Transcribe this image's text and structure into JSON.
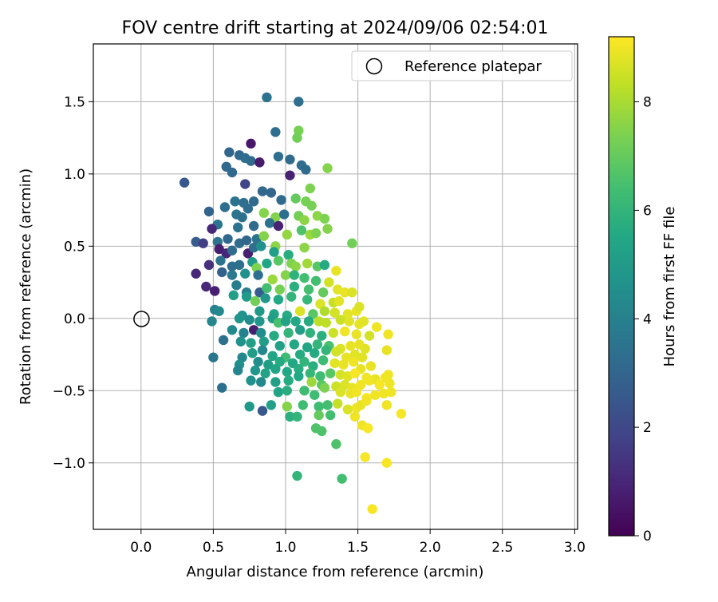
{
  "chart_data": {
    "type": "scatter",
    "title": "FOV centre drift starting at 2024/09/06 02:54:01",
    "xlabel": "Angular distance from reference (arcmin)",
    "ylabel": "Rotation from reference (arcmin)",
    "xlim": [
      -0.33,
      3.02
    ],
    "ylim": [
      -1.46,
      1.9
    ],
    "xticks": [
      0.0,
      0.5,
      1.0,
      1.5,
      2.0,
      2.5,
      3.0
    ],
    "xtick_labels": [
      "0.0",
      "0.5",
      "1.0",
      "1.5",
      "2.0",
      "2.5",
      "3.0"
    ],
    "yticks": [
      -1.0,
      -0.5,
      0.0,
      0.5,
      1.0,
      1.5
    ],
    "ytick_labels": [
      "−1.0",
      "−0.5",
      "0.0",
      "0.5",
      "1.0",
      "1.5"
    ],
    "grid": true,
    "legend": {
      "position": "top-right",
      "label": "Reference platepar"
    },
    "reference_point": {
      "x": 0.0,
      "y": 0.0
    },
    "colorbar": {
      "label": "Hours from first FF file",
      "min": 0,
      "max": 9.2,
      "ticks": [
        0,
        2,
        4,
        6,
        8
      ],
      "tick_labels": [
        "0",
        "2",
        "4",
        "6",
        "8"
      ],
      "colormap": "viridis"
    },
    "points": [
      [
        0.87,
        1.53,
        3.5
      ],
      [
        1.09,
        1.5,
        3.3
      ],
      [
        0.93,
        1.29,
        3.3
      ],
      [
        1.09,
        1.3,
        7.3
      ],
      [
        1.08,
        1.25,
        7.2
      ],
      [
        0.76,
        1.21,
        0.6
      ],
      [
        0.61,
        1.15,
        3.0
      ],
      [
        0.68,
        1.13,
        3.1
      ],
      [
        0.72,
        1.11,
        3.3
      ],
      [
        0.76,
        1.09,
        3.2
      ],
      [
        0.82,
        1.08,
        0.7
      ],
      [
        0.95,
        1.12,
        3.3
      ],
      [
        1.03,
        1.1,
        3.2
      ],
      [
        1.11,
        1.06,
        3.3
      ],
      [
        1.14,
        1.03,
        3.2
      ],
      [
        0.59,
        1.05,
        3.1
      ],
      [
        0.63,
        1.01,
        3.1
      ],
      [
        1.03,
        0.99,
        0.9
      ],
      [
        1.29,
        1.04,
        7.5
      ],
      [
        0.3,
        0.94,
        2.5
      ],
      [
        0.72,
        0.93,
        1.9
      ],
      [
        0.84,
        0.88,
        3.0
      ],
      [
        0.9,
        0.87,
        3.0
      ],
      [
        1.17,
        0.9,
        7.4
      ],
      [
        0.65,
        0.81,
        3.5
      ],
      [
        0.71,
        0.8,
        3.3
      ],
      [
        0.78,
        0.81,
        3.2
      ],
      [
        0.97,
        0.82,
        3.2
      ],
      [
        1.07,
        0.83,
        7.0
      ],
      [
        1.14,
        0.81,
        7.3
      ],
      [
        1.18,
        0.78,
        7.3
      ],
      [
        0.47,
        0.74,
        2.9
      ],
      [
        0.58,
        0.77,
        3.3
      ],
      [
        0.66,
        0.72,
        3.5
      ],
      [
        0.7,
        0.7,
        3.4
      ],
      [
        0.74,
        0.76,
        3.3
      ],
      [
        0.85,
        0.73,
        7.5
      ],
      [
        0.93,
        0.7,
        7.5
      ],
      [
        0.99,
        0.72,
        3.4
      ],
      [
        1.09,
        0.71,
        7.2
      ],
      [
        1.13,
        0.68,
        7.6
      ],
      [
        1.22,
        0.71,
        7.6
      ],
      [
        1.27,
        0.69,
        7.4
      ],
      [
        0.53,
        0.65,
        3.6
      ],
      [
        0.49,
        0.62,
        1.0
      ],
      [
        0.67,
        0.63,
        3.5
      ],
      [
        0.78,
        0.64,
        3.2
      ],
      [
        0.89,
        0.66,
        3.5
      ],
      [
        0.95,
        0.64,
        0.9
      ],
      [
        1.11,
        0.61,
        6.6
      ],
      [
        1.17,
        0.58,
        7.8
      ],
      [
        1.21,
        0.59,
        7.4
      ],
      [
        1.29,
        0.62,
        7.5
      ],
      [
        1.01,
        0.58,
        7.7
      ],
      [
        0.38,
        0.53,
        2.7
      ],
      [
        0.43,
        0.52,
        1.7
      ],
      [
        0.53,
        0.53,
        3.5
      ],
      [
        0.6,
        0.55,
        3.1
      ],
      [
        0.68,
        0.52,
        3.2
      ],
      [
        0.73,
        0.54,
        3.0
      ],
      [
        0.8,
        0.55,
        3.5
      ],
      [
        0.85,
        0.57,
        7.5
      ],
      [
        0.93,
        0.5,
        7.6
      ],
      [
        1.13,
        0.49,
        7.6
      ],
      [
        1.46,
        0.52,
        7.2
      ],
      [
        0.54,
        0.48,
        0.8
      ],
      [
        0.59,
        0.45,
        1.0
      ],
      [
        0.63,
        0.47,
        3.2
      ],
      [
        0.74,
        0.45,
        0.8
      ],
      [
        0.78,
        0.49,
        3.3
      ],
      [
        0.83,
        0.5,
        4.6
      ],
      [
        0.92,
        0.46,
        5.2
      ],
      [
        1.02,
        0.44,
        5.7
      ],
      [
        0.47,
        0.37,
        1.3
      ],
      [
        0.55,
        0.4,
        3.5
      ],
      [
        0.63,
        0.36,
        3.3
      ],
      [
        0.68,
        0.37,
        3.4
      ],
      [
        0.77,
        0.39,
        5.0
      ],
      [
        0.8,
        0.35,
        7.4
      ],
      [
        0.87,
        0.38,
        5.4
      ],
      [
        0.95,
        0.4,
        6.8
      ],
      [
        1.04,
        0.38,
        7.4
      ],
      [
        1.07,
        0.36,
        7.6
      ],
      [
        1.15,
        0.38,
        7.9
      ],
      [
        1.22,
        0.36,
        6.8
      ],
      [
        1.27,
        0.37,
        5.6
      ],
      [
        1.35,
        0.33,
        8.9
      ],
      [
        0.38,
        0.31,
        1.0
      ],
      [
        0.56,
        0.32,
        2.9
      ],
      [
        0.63,
        0.3,
        3.7
      ],
      [
        0.72,
        0.31,
        4.6
      ],
      [
        0.81,
        0.3,
        3.3
      ],
      [
        0.91,
        0.27,
        7.8
      ],
      [
        1.0,
        0.3,
        7.5
      ],
      [
        1.06,
        0.3,
        5.9
      ],
      [
        1.13,
        0.28,
        6.4
      ],
      [
        1.21,
        0.26,
        6.4
      ],
      [
        1.3,
        0.25,
        8.6
      ],
      [
        0.45,
        0.22,
        1.0
      ],
      [
        0.51,
        0.19,
        0.8
      ],
      [
        0.66,
        0.23,
        3.9
      ],
      [
        0.73,
        0.18,
        3.9
      ],
      [
        0.82,
        0.18,
        2.7
      ],
      [
        0.87,
        0.21,
        6.4
      ],
      [
        0.96,
        0.2,
        7.3
      ],
      [
        1.06,
        0.22,
        5.8
      ],
      [
        1.16,
        0.2,
        6.4
      ],
      [
        1.26,
        0.18,
        7.0
      ],
      [
        1.36,
        0.2,
        8.8
      ],
      [
        1.41,
        0.18,
        8.9
      ],
      [
        1.46,
        0.18,
        8.7
      ],
      [
        0.64,
        0.16,
        5.2
      ],
      [
        0.73,
        0.15,
        5.0
      ],
      [
        0.79,
        0.12,
        7.2
      ],
      [
        0.86,
        0.14,
        4.8
      ],
      [
        0.95,
        0.13,
        5.5
      ],
      [
        1.04,
        0.15,
        6.0
      ],
      [
        1.15,
        0.13,
        6.1
      ],
      [
        1.24,
        0.1,
        8.7
      ],
      [
        1.33,
        0.11,
        8.4
      ],
      [
        1.37,
        0.12,
        8.8
      ],
      [
        0.51,
        0.06,
        4.0
      ],
      [
        0.54,
        0.05,
        4.3
      ],
      [
        0.7,
        0.02,
        4.6
      ],
      [
        0.82,
        0.05,
        4.9
      ],
      [
        0.92,
        0.03,
        5.4
      ],
      [
        1.01,
        0.02,
        5.6
      ],
      [
        1.1,
        0.05,
        8.7
      ],
      [
        1.19,
        0.03,
        6.8
      ],
      [
        1.27,
        0.05,
        8.1
      ],
      [
        1.34,
        0.04,
        8.6
      ],
      [
        1.43,
        0.03,
        8.8
      ],
      [
        1.49,
        0.05,
        8.9
      ],
      [
        1.51,
        0.08,
        8.7
      ],
      [
        0.49,
        -0.02,
        4.2
      ],
      [
        0.68,
        0.0,
        4.7
      ],
      [
        0.75,
        -0.01,
        4.5
      ],
      [
        0.82,
        -0.02,
        4.8
      ],
      [
        0.91,
        0.0,
        5.1
      ],
      [
        0.95,
        -0.03,
        6.5
      ],
      [
        1.0,
        -0.02,
        5.3
      ],
      [
        1.07,
        -0.02,
        5.5
      ],
      [
        1.16,
        -0.02,
        5.6
      ],
      [
        1.23,
        -0.02,
        8.3
      ],
      [
        1.28,
        -0.03,
        8.3
      ],
      [
        1.38,
        -0.01,
        8.5
      ],
      [
        1.44,
        -0.02,
        8.8
      ],
      [
        1.51,
        -0.04,
        8.9
      ],
      [
        1.54,
        -0.02,
        8.8
      ],
      [
        1.63,
        -0.06,
        9.0
      ],
      [
        0.63,
        -0.08,
        4.3
      ],
      [
        0.71,
        -0.1,
        4.1
      ],
      [
        0.78,
        -0.08,
        0.8
      ],
      [
        0.83,
        -0.1,
        4.5
      ],
      [
        0.92,
        -0.12,
        5.6
      ],
      [
        1.02,
        -0.1,
        6.0
      ],
      [
        1.1,
        -0.08,
        5.1
      ],
      [
        1.17,
        -0.1,
        5.9
      ],
      [
        1.25,
        -0.12,
        5.8
      ],
      [
        1.33,
        -0.1,
        8.5
      ],
      [
        1.41,
        -0.09,
        9.0
      ],
      [
        1.49,
        -0.11,
        8.9
      ],
      [
        1.58,
        -0.12,
        8.6
      ],
      [
        1.71,
        -0.11,
        9.0
      ],
      [
        0.57,
        -0.15,
        3.4
      ],
      [
        0.69,
        -0.16,
        4.6
      ],
      [
        0.76,
        -0.17,
        5.2
      ],
      [
        0.85,
        -0.16,
        5.1
      ],
      [
        0.96,
        -0.19,
        5.2
      ],
      [
        1.06,
        -0.18,
        5.5
      ],
      [
        1.15,
        -0.2,
        5.4
      ],
      [
        1.22,
        -0.18,
        6.0
      ],
      [
        1.3,
        -0.19,
        6.5
      ],
      [
        1.38,
        -0.21,
        8.7
      ],
      [
        1.45,
        -0.19,
        8.9
      ],
      [
        1.51,
        -0.18,
        8.9
      ],
      [
        1.55,
        -0.21,
        8.8
      ],
      [
        0.5,
        -0.27,
        3.6
      ],
      [
        0.7,
        -0.27,
        4.2
      ],
      [
        0.77,
        -0.24,
        5.1
      ],
      [
        0.84,
        -0.22,
        4.3
      ],
      [
        0.91,
        -0.26,
        5.4
      ],
      [
        1.0,
        -0.27,
        6.3
      ],
      [
        1.1,
        -0.25,
        5.6
      ],
      [
        1.2,
        -0.24,
        5.6
      ],
      [
        1.28,
        -0.22,
        6.0
      ],
      [
        1.35,
        -0.23,
        8.6
      ],
      [
        1.42,
        -0.27,
        8.9
      ],
      [
        1.48,
        -0.25,
        8.8
      ],
      [
        1.53,
        -0.27,
        8.8
      ],
      [
        1.7,
        -0.22,
        8.9
      ],
      [
        0.68,
        -0.32,
        4.6
      ],
      [
        0.81,
        -0.3,
        4.5
      ],
      [
        0.88,
        -0.32,
        5.1
      ],
      [
        0.96,
        -0.3,
        5.6
      ],
      [
        1.05,
        -0.31,
        5.5
      ],
      [
        1.13,
        -0.3,
        6.0
      ],
      [
        1.19,
        -0.33,
        5.8
      ],
      [
        1.26,
        -0.29,
        6.3
      ],
      [
        1.34,
        -0.31,
        8.8
      ],
      [
        1.4,
        -0.32,
        8.9
      ],
      [
        1.47,
        -0.3,
        9.0
      ],
      [
        1.52,
        -0.35,
        8.9
      ],
      [
        1.59,
        -0.33,
        8.9
      ],
      [
        0.67,
        -0.36,
        4.2
      ],
      [
        0.79,
        -0.36,
        4.8
      ],
      [
        0.86,
        -0.38,
        5.3
      ],
      [
        0.93,
        -0.35,
        5.4
      ],
      [
        1.01,
        -0.37,
        5.5
      ],
      [
        1.09,
        -0.35,
        5.7
      ],
      [
        1.17,
        -0.38,
        6.1
      ],
      [
        1.24,
        -0.4,
        6.3
      ],
      [
        1.31,
        -0.38,
        6.8
      ],
      [
        1.38,
        -0.39,
        8.6
      ],
      [
        1.43,
        -0.4,
        8.8
      ],
      [
        1.48,
        -0.38,
        9.1
      ],
      [
        1.56,
        -0.41,
        9.0
      ],
      [
        1.62,
        -0.42,
        8.9
      ],
      [
        1.69,
        -0.41,
        9.0
      ],
      [
        1.71,
        -0.39,
        9.0
      ],
      [
        0.76,
        -0.43,
        4.6
      ],
      [
        0.83,
        -0.44,
        4.3
      ],
      [
        0.93,
        -0.44,
        5.2
      ],
      [
        1.02,
        -0.43,
        5.6
      ],
      [
        1.09,
        -0.4,
        5.5
      ],
      [
        1.18,
        -0.44,
        7.8
      ],
      [
        1.25,
        -0.46,
        6.8
      ],
      [
        1.35,
        -0.47,
        8.5
      ],
      [
        1.41,
        -0.46,
        8.7
      ],
      [
        1.46,
        -0.48,
        8.9
      ],
      [
        1.52,
        -0.46,
        9.0
      ],
      [
        1.58,
        -0.43,
        9.0
      ],
      [
        1.65,
        -0.46,
        9.1
      ],
      [
        1.72,
        -0.45,
        9.0
      ],
      [
        0.56,
        -0.48,
        3.4
      ],
      [
        0.95,
        -0.51,
        5.3
      ],
      [
        1.01,
        -0.5,
        5.7
      ],
      [
        1.13,
        -0.5,
        6.3
      ],
      [
        1.2,
        -0.53,
        6.3
      ],
      [
        1.27,
        -0.48,
        7.4
      ],
      [
        1.38,
        -0.51,
        8.7
      ],
      [
        1.45,
        -0.52,
        8.9
      ],
      [
        1.49,
        -0.51,
        9.0
      ],
      [
        1.56,
        -0.55,
        9.1
      ],
      [
        1.62,
        -0.53,
        9.0
      ],
      [
        1.68,
        -0.52,
        9.0
      ],
      [
        1.73,
        -0.51,
        9.0
      ],
      [
        0.75,
        -0.61,
        4.9
      ],
      [
        0.84,
        -0.64,
        2.5
      ],
      [
        0.9,
        -0.6,
        5.2
      ],
      [
        1.01,
        -0.61,
        7.5
      ],
      [
        1.12,
        -0.6,
        6.3
      ],
      [
        1.23,
        -0.61,
        6.3
      ],
      [
        1.29,
        -0.6,
        6.4
      ],
      [
        1.36,
        -0.59,
        8.4
      ],
      [
        1.43,
        -0.63,
        8.7
      ],
      [
        1.49,
        -0.62,
        9.0
      ],
      [
        1.52,
        -0.6,
        8.9
      ],
      [
        1.56,
        -0.57,
        9.0
      ],
      [
        1.7,
        -0.6,
        9.0
      ],
      [
        1.8,
        -0.66,
        9.1
      ],
      [
        1.03,
        -0.68,
        5.8
      ],
      [
        1.08,
        -0.68,
        6.0
      ],
      [
        1.23,
        -0.67,
        7.0
      ],
      [
        1.31,
        -0.67,
        6.4
      ],
      [
        1.48,
        -0.68,
        9.0
      ],
      [
        1.21,
        -0.76,
        6.6
      ],
      [
        1.25,
        -0.78,
        6.6
      ],
      [
        1.53,
        -0.74,
        9.0
      ],
      [
        1.57,
        -0.76,
        9.1
      ],
      [
        1.35,
        -0.87,
        6.6
      ],
      [
        1.55,
        -0.96,
        9.1
      ],
      [
        1.7,
        -1.0,
        9.1
      ],
      [
        1.08,
        -1.09,
        6.0
      ],
      [
        1.39,
        -1.11,
        6.4
      ],
      [
        1.6,
        -1.32,
        9.1
      ]
    ]
  }
}
